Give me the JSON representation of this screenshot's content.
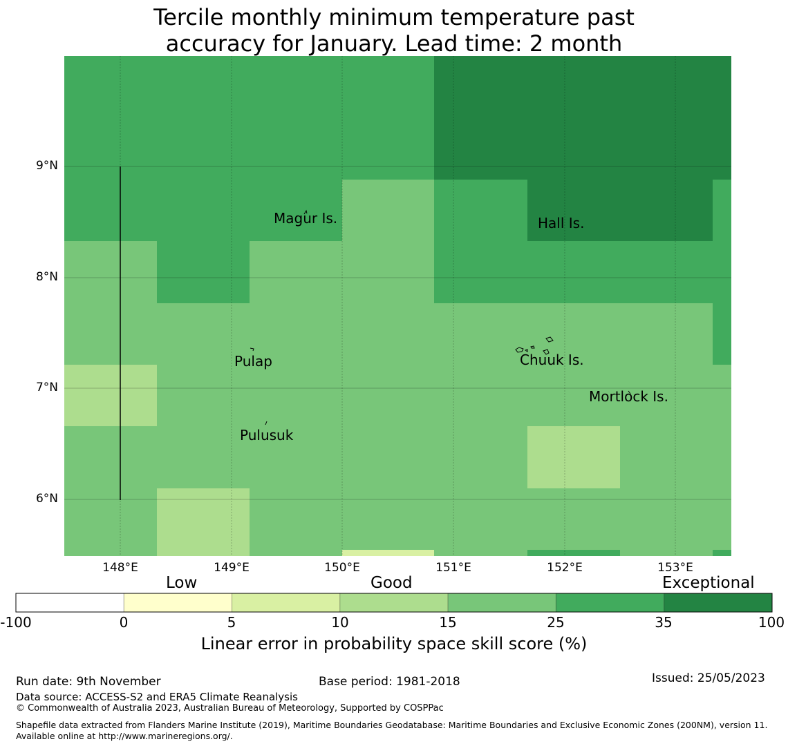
{
  "title": {
    "line1": "Tercile monthly minimum temperature past",
    "line2": "accuracy for January. Lead time: 2 month"
  },
  "map": {
    "lat_labels": [
      "9°N",
      "8°N",
      "7°N",
      "6°N"
    ],
    "lon_labels": [
      "148°E",
      "149°E",
      "150°E",
      "151°E",
      "152°E",
      "153°E"
    ],
    "places": [
      "Magur Is.",
      "Hall Is.",
      "Pulap",
      "Chuuk Is.",
      "Mortlock Is.",
      "Pulusuk"
    ],
    "colors": {
      "0_5": "#ffffcc",
      "5_10": "#d9f0a3",
      "10_15": "#addd8e",
      "15_25": "#78c679",
      "25_35": "#41ab5d",
      "35_100": "#238443"
    }
  },
  "colorbar": {
    "categories": [
      "Low",
      "Good",
      "Exceptional"
    ],
    "ticks": [
      "-100",
      "0",
      "5",
      "10",
      "15",
      "25",
      "35",
      "100"
    ],
    "colors": [
      "#ffffff",
      "#ffffcc",
      "#d9f0a3",
      "#addd8e",
      "#78c679",
      "#41ab5d",
      "#238443"
    ],
    "title": "Linear error in probability space skill score (%)"
  },
  "footer": {
    "run_date": "Run date: 9th November",
    "base_period": "Base period: 1981-2018",
    "issued": "Issued: 25/05/2023",
    "data_source": "Data source: ACCESS-S2 and ERA5 Climate Reanalysis",
    "copyright": "© Commonwealth of Australia 2023, Australian Bureau of Meteorology, Supported by COSPPac",
    "shapefile": "Shapefile data extracted from Flanders Marine Institute (2019), Maritime Boundaries Geodatabase: Maritime Boundaries and Exclusive Economic Zones (200NM), version 11. Available online at http://www.marineregions.org/."
  }
}
